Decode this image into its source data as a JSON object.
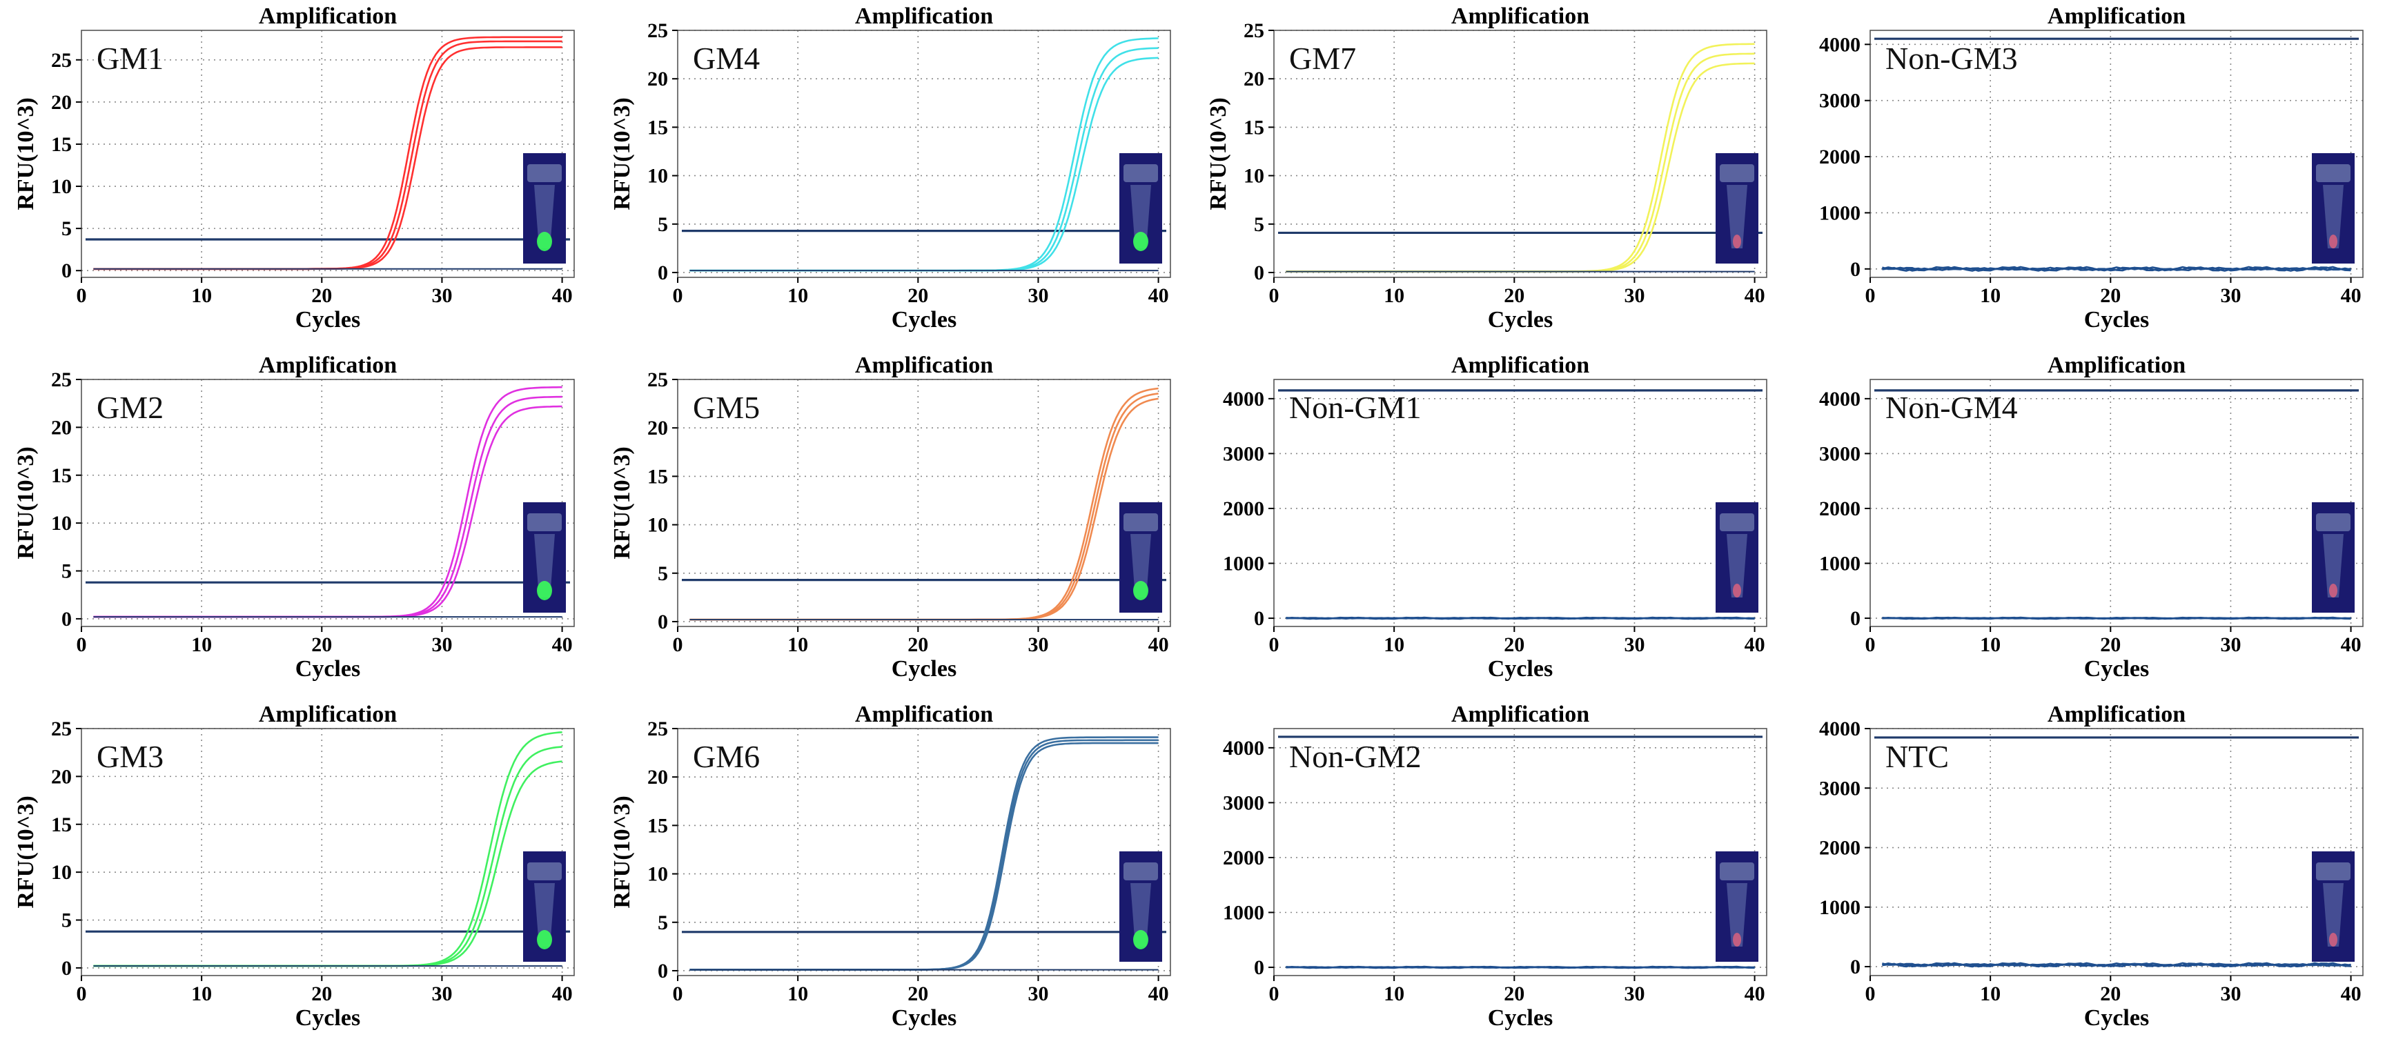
{
  "figure": {
    "panel_title": "Amplification",
    "x_label": "Cycles",
    "y_label_gm": "RFU(10^3)"
  },
  "colors": {
    "frame": "#1f3a6a",
    "threshold": "#1f3a6a",
    "grid": "#888888",
    "tube_dark": "#1a1a6e",
    "tube_glow_green": "#39ff5a",
    "tube_glow_pink": "#d06080"
  },
  "chart_data": [
    {
      "id": "GM1",
      "type": "line",
      "sample_label": "GM1",
      "title": "Amplification",
      "xlabel": "Cycles",
      "ylabel": "RFU(10^3)",
      "xlim": [
        0,
        41
      ],
      "ylim": [
        -0.8,
        28.5
      ],
      "xticks": [
        0,
        10,
        20,
        30,
        40
      ],
      "yticks": [
        0,
        5,
        10,
        15,
        20,
        25
      ],
      "grid": true,
      "curve_color": "#ff3030",
      "threshold": 3.7,
      "baseline": 0.2,
      "tube_glow": "green",
      "series": [
        {
          "name": "rep1",
          "plateau": 27.5,
          "midpoint": 27.2,
          "slope": 1.1
        },
        {
          "name": "rep2",
          "plateau": 27.0,
          "midpoint": 27.5,
          "slope": 1.1
        },
        {
          "name": "rep3",
          "plateau": 26.3,
          "midpoint": 27.8,
          "slope": 1.1
        }
      ]
    },
    {
      "id": "GM4",
      "type": "line",
      "sample_label": "GM4",
      "title": "Amplification",
      "xlabel": "Cycles",
      "ylabel": "RFU(10^3)",
      "xlim": [
        0,
        41
      ],
      "ylim": [
        -0.5,
        25
      ],
      "xticks": [
        0,
        10,
        20,
        30,
        40
      ],
      "yticks": [
        0,
        5,
        10,
        15,
        20,
        25
      ],
      "grid": true,
      "curve_color": "#40e0e8",
      "threshold": 4.3,
      "baseline": 0.2,
      "tube_glow": "green",
      "series": [
        {
          "name": "rep1",
          "plateau": 24.0,
          "midpoint": 33.0,
          "slope": 1.0
        },
        {
          "name": "rep2",
          "plateau": 23.0,
          "midpoint": 33.3,
          "slope": 1.0
        },
        {
          "name": "rep3",
          "plateau": 22.0,
          "midpoint": 33.6,
          "slope": 1.0
        }
      ]
    },
    {
      "id": "GM7",
      "type": "line",
      "sample_label": "GM7",
      "title": "Amplification",
      "xlabel": "Cycles",
      "ylabel": "RFU(10^3)",
      "xlim": [
        0,
        41
      ],
      "ylim": [
        -0.5,
        25
      ],
      "xticks": [
        0,
        10,
        20,
        30,
        40
      ],
      "yticks": [
        0,
        5,
        10,
        15,
        20,
        25
      ],
      "grid": true,
      "curve_color": "#f2f25a",
      "threshold": 4.1,
      "baseline": 0.1,
      "tube_glow": "pink",
      "series": [
        {
          "name": "rep1",
          "plateau": 23.5,
          "midpoint": 32.2,
          "slope": 1.05
        },
        {
          "name": "rep2",
          "plateau": 22.5,
          "midpoint": 32.5,
          "slope": 1.05
        },
        {
          "name": "rep3",
          "plateau": 21.5,
          "midpoint": 32.8,
          "slope": 1.05
        }
      ]
    },
    {
      "id": "NonGM3",
      "type": "line",
      "sample_label": "Non-GM3",
      "title": "Amplification",
      "xlabel": "Cycles",
      "ylabel": "",
      "xlim": [
        0,
        41
      ],
      "ylim": [
        -150,
        4250
      ],
      "xticks": [
        0,
        10,
        20,
        30,
        40
      ],
      "yticks": [
        0,
        1000,
        2000,
        3000,
        4000
      ],
      "grid": true,
      "curve_color": "#1f4f8f",
      "threshold": 4100,
      "baseline": 0,
      "noise": 35,
      "tube_glow": "pink",
      "series": []
    },
    {
      "id": "GM2",
      "type": "line",
      "sample_label": "GM2",
      "title": "Amplification",
      "xlabel": "Cycles",
      "ylabel": "RFU(10^3)",
      "xlim": [
        0,
        41
      ],
      "ylim": [
        -0.8,
        25
      ],
      "xticks": [
        0,
        10,
        20,
        30,
        40
      ],
      "yticks": [
        0,
        5,
        10,
        15,
        20,
        25
      ],
      "grid": true,
      "curve_color": "#e030e0",
      "threshold": 3.8,
      "baseline": 0.2,
      "tube_glow": "green",
      "series": [
        {
          "name": "rep1",
          "plateau": 24.0,
          "midpoint": 32.0,
          "slope": 1.0
        },
        {
          "name": "rep2",
          "plateau": 23.0,
          "midpoint": 32.3,
          "slope": 1.0
        },
        {
          "name": "rep3",
          "plateau": 22.0,
          "midpoint": 32.6,
          "slope": 1.0
        }
      ]
    },
    {
      "id": "GM5",
      "type": "line",
      "sample_label": "GM5",
      "title": "Amplification",
      "xlabel": "Cycles",
      "ylabel": "RFU(10^3)",
      "xlim": [
        0,
        41
      ],
      "ylim": [
        -0.5,
        25
      ],
      "xticks": [
        0,
        10,
        20,
        30,
        40
      ],
      "yticks": [
        0,
        5,
        10,
        15,
        20,
        25
      ],
      "grid": true,
      "curve_color": "#f08a50",
      "threshold": 4.3,
      "baseline": 0.2,
      "tube_glow": "green",
      "series": [
        {
          "name": "rep1",
          "plateau": 24.0,
          "midpoint": 34.5,
          "slope": 0.95
        },
        {
          "name": "rep2",
          "plateau": 23.5,
          "midpoint": 34.7,
          "slope": 0.95
        },
        {
          "name": "rep3",
          "plateau": 23.0,
          "midpoint": 34.9,
          "slope": 0.95
        }
      ]
    },
    {
      "id": "NonGM1",
      "type": "line",
      "sample_label": "Non-GM1",
      "title": "Amplification",
      "xlabel": "Cycles",
      "ylabel": "",
      "xlim": [
        0,
        41
      ],
      "ylim": [
        -150,
        4350
      ],
      "xticks": [
        0,
        10,
        20,
        30,
        40
      ],
      "yticks": [
        0,
        1000,
        2000,
        3000,
        4000
      ],
      "grid": true,
      "curve_color": "#1f4f8f",
      "threshold": 4150,
      "baseline": 0,
      "noise": 12,
      "tube_glow": "pink",
      "series": []
    },
    {
      "id": "NonGM4",
      "type": "line",
      "sample_label": "Non-GM4",
      "title": "Amplification",
      "xlabel": "Cycles",
      "ylabel": "",
      "xlim": [
        0,
        41
      ],
      "ylim": [
        -150,
        4350
      ],
      "xticks": [
        0,
        10,
        20,
        30,
        40
      ],
      "yticks": [
        0,
        1000,
        2000,
        3000,
        4000
      ],
      "grid": true,
      "curve_color": "#1f4f8f",
      "threshold": 4150,
      "baseline": 0,
      "noise": 12,
      "tube_glow": "pink",
      "series": []
    },
    {
      "id": "GM3",
      "type": "line",
      "sample_label": "GM3",
      "title": "Amplification",
      "xlabel": "Cycles",
      "ylabel": "RFU(10^3)",
      "xlim": [
        0,
        41
      ],
      "ylim": [
        -0.8,
        25
      ],
      "xticks": [
        0,
        10,
        20,
        30,
        40
      ],
      "yticks": [
        0,
        5,
        10,
        15,
        20,
        25
      ],
      "grid": true,
      "curve_color": "#40f060",
      "threshold": 3.8,
      "baseline": 0.2,
      "tube_glow": "green",
      "series": [
        {
          "name": "rep1",
          "plateau": 24.5,
          "midpoint": 34.0,
          "slope": 0.95
        },
        {
          "name": "rep2",
          "plateau": 23.0,
          "midpoint": 34.3,
          "slope": 0.95
        },
        {
          "name": "rep3",
          "plateau": 21.5,
          "midpoint": 34.6,
          "slope": 0.95
        }
      ]
    },
    {
      "id": "GM6",
      "type": "line",
      "sample_label": "GM6",
      "title": "Amplification",
      "xlabel": "Cycles",
      "ylabel": "RFU(10^3)",
      "xlim": [
        0,
        41
      ],
      "ylim": [
        -0.5,
        25
      ],
      "xticks": [
        0,
        10,
        20,
        30,
        40
      ],
      "yticks": [
        0,
        5,
        10,
        15,
        20,
        25
      ],
      "grid": true,
      "curve_color": "#3a6fa0",
      "threshold": 4.0,
      "baseline": 0.1,
      "tube_glow": "green",
      "series": [
        {
          "name": "rep1",
          "plateau": 24.0,
          "midpoint": 27.0,
          "slope": 1.15
        },
        {
          "name": "rep2",
          "plateau": 23.7,
          "midpoint": 27.1,
          "slope": 1.15
        },
        {
          "name": "rep3",
          "plateau": 23.4,
          "midpoint": 27.2,
          "slope": 1.15
        }
      ]
    },
    {
      "id": "NonGM2",
      "type": "line",
      "sample_label": "Non-GM2",
      "title": "Amplification",
      "xlabel": "Cycles",
      "ylabel": "",
      "xlim": [
        0,
        41
      ],
      "ylim": [
        -150,
        4350
      ],
      "xticks": [
        0,
        10,
        20,
        30,
        40
      ],
      "yticks": [
        0,
        1000,
        2000,
        3000,
        4000
      ],
      "grid": true,
      "curve_color": "#1f4f8f",
      "threshold": 4200,
      "baseline": 0,
      "noise": 12,
      "tube_glow": "pink",
      "series": []
    },
    {
      "id": "NTC",
      "type": "line",
      "sample_label": "NTC",
      "title": "Amplification",
      "xlabel": "Cycles",
      "ylabel": "",
      "xlim": [
        0,
        41
      ],
      "ylim": [
        -150,
        4000
      ],
      "xticks": [
        0,
        10,
        20,
        30,
        40
      ],
      "yticks": [
        0,
        1000,
        2000,
        3000,
        4000
      ],
      "grid": true,
      "curve_color": "#1f4f8f",
      "threshold": 3850,
      "baseline": 30,
      "noise": 30,
      "tube_glow": "pink",
      "series": []
    }
  ]
}
